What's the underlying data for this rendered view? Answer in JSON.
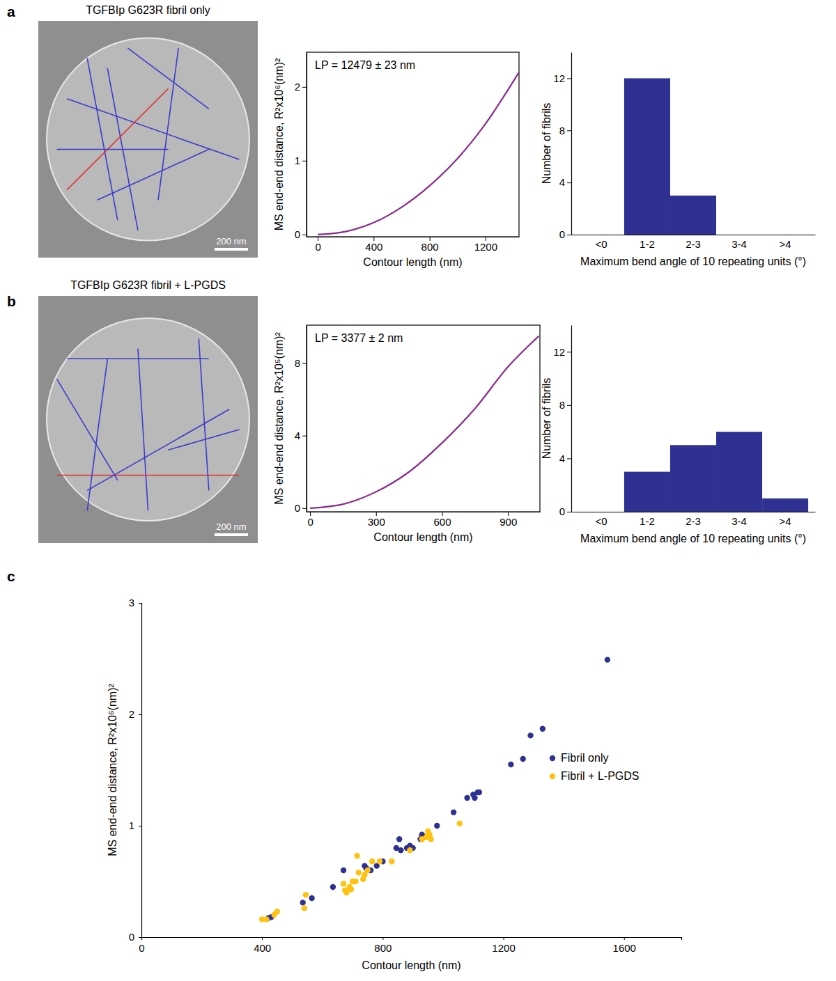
{
  "chart_data": [
    {
      "type": "image",
      "panel": "a",
      "title": "TGFBIp G623R fibril only",
      "scale_bar": "200 nm"
    },
    {
      "type": "line",
      "annotation": "LP = 12479 ± 23 nm",
      "x_label": "Contour length (nm)",
      "y_label": "MS end-end distance, R²x10⁶(nm)²",
      "x": [
        0,
        200,
        400,
        600,
        800,
        1000,
        1200,
        1440
      ],
      "values": [
        0,
        0.04,
        0.16,
        0.37,
        0.66,
        1.03,
        1.5,
        2.2
      ],
      "color": "#8b2a8c",
      "xlim": [
        -80,
        1440
      ],
      "xticks": [
        0,
        400,
        800,
        1200
      ],
      "ylim": [
        -0.03,
        2.47
      ],
      "yticks": [
        0,
        1,
        2
      ]
    },
    {
      "type": "bar",
      "x_label": "Maximum bend angle of 10 repeating units (°)",
      "y_label": "Number of fibrils",
      "categories": [
        "<0",
        "1-2",
        "2-3",
        "3-4",
        ">4"
      ],
      "values": [
        0,
        12,
        3,
        0,
        0
      ],
      "color": "#2e3192",
      "ylim": [
        0,
        14
      ],
      "yticks": [
        0,
        4,
        8,
        12
      ]
    },
    {
      "type": "image",
      "panel": "b",
      "title": "TGFBIp G623R fibril + L-PGDS",
      "scale_bar": "200 nm"
    },
    {
      "type": "line",
      "annotation": "LP = 3377 ± 2 nm",
      "x_label": "Contour length (nm)",
      "y_label": "MS end-end distance, R²x10⁵(nm)²",
      "x": [
        0,
        150,
        300,
        450,
        600,
        750,
        900,
        1040
      ],
      "values": [
        0,
        0.22,
        0.9,
        2.0,
        3.6,
        5.5,
        7.8,
        9.5
      ],
      "color": "#8b2a8c",
      "xlim": [
        -16,
        1045
      ],
      "xticks": [
        0,
        300,
        600,
        900
      ],
      "ylim": [
        -0.2,
        10.1
      ],
      "yticks": [
        0,
        4,
        8
      ]
    },
    {
      "type": "bar",
      "x_label": "Maximum bend angle of 10 repeating units (°)",
      "y_label": "Number of fibrils",
      "categories": [
        "<0",
        "1-2",
        "2-3",
        "3-4",
        ">4"
      ],
      "values": [
        0,
        3,
        5,
        6,
        1
      ],
      "color": "#2e3192",
      "ylim": [
        0,
        14
      ],
      "yticks": [
        0,
        4,
        8,
        12
      ]
    },
    {
      "type": "scatter",
      "panel": "c",
      "legend": "right",
      "x_label": "Contour length (nm)",
      "y_label": "MS end-end distance, R²x10⁶(nm)²",
      "xlim": [
        0,
        1790
      ],
      "xticks": [
        0,
        400,
        800,
        1200,
        1600
      ],
      "ylim": [
        0,
        3
      ],
      "yticks": [
        0,
        1,
        2,
        3
      ],
      "series": [
        {
          "name": "Fibril only",
          "color": "#2e3192",
          "x": [
            420,
            430,
            535,
            565,
            635,
            670,
            740,
            745,
            760,
            780,
            800,
            845,
            855,
            860,
            880,
            890,
            900,
            925,
            930,
            940,
            980,
            1035,
            1080,
            1100,
            1105,
            1115,
            1120,
            1225,
            1265,
            1290,
            1330,
            1545
          ],
          "values": [
            0.17,
            0.18,
            0.31,
            0.35,
            0.45,
            0.6,
            0.64,
            0.62,
            0.6,
            0.64,
            0.68,
            0.8,
            0.88,
            0.78,
            0.8,
            0.82,
            0.8,
            0.88,
            0.92,
            0.9,
            1.0,
            1.12,
            1.25,
            1.28,
            1.25,
            1.3,
            1.3,
            1.55,
            1.6,
            1.81,
            1.87,
            2.49
          ]
        },
        {
          "name": "Fibril + L-PGDS",
          "color": "#ffc20e",
          "x": [
            400,
            415,
            440,
            450,
            540,
            545,
            670,
            675,
            680,
            690,
            695,
            700,
            710,
            715,
            720,
            735,
            740,
            750,
            765,
            790,
            830,
            890,
            930,
            945,
            950,
            955,
            960,
            1055
          ],
          "values": [
            0.16,
            0.16,
            0.2,
            0.23,
            0.26,
            0.38,
            0.48,
            0.42,
            0.4,
            0.45,
            0.43,
            0.5,
            0.5,
            0.73,
            0.58,
            0.52,
            0.56,
            0.6,
            0.68,
            0.68,
            0.68,
            0.78,
            0.88,
            0.9,
            0.95,
            0.92,
            0.88,
            1.02
          ]
        }
      ]
    }
  ]
}
